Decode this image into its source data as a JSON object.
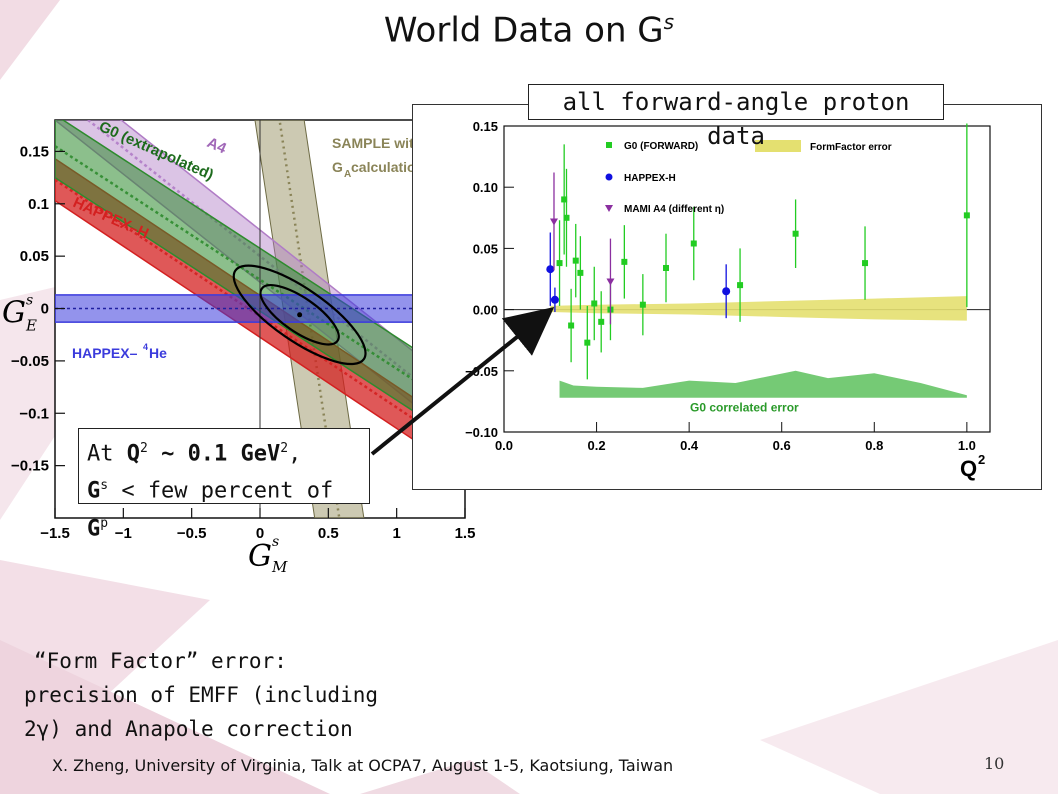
{
  "title": {
    "text": "World Data on G",
    "sup": "s"
  },
  "colors": {
    "g0": "#2e8b2e",
    "happex_h": "#d42020",
    "a4": "#b07cc6",
    "sample": "#9a9466",
    "he4": "#3b3bdc",
    "happex_blue": "#1010e0",
    "mami": "#8b2fa0",
    "g0_marker": "#22cc22",
    "formfactor": "#e4e070",
    "correlated": "#66c466"
  },
  "forward_label": "all forward-angle proton data",
  "callout": {
    "line1_pre": "At ",
    "q": "Q",
    "q_sup": "2",
    "line1_post": " ~ 0.1 GeV",
    "gev_sup": "2",
    "comma": ",",
    "line2_g": "G",
    "line2_sup": "s",
    "line2_mid": " < few percent of ",
    "line2_gp": "G",
    "line2_gp_sup": "p"
  },
  "ff_note": [
    "“Form Factor” error:",
    "precision of EMFF (including",
    "2γ) and Anapole correction"
  ],
  "footer": "X. Zheng, University of Virginia,  Talk at OCPA7, August 1-5, Kaotsiung, Taiwan",
  "page_number": "10",
  "chart_data": [
    {
      "type": "area",
      "xlabel": "G_M^s",
      "ylabel": "G_E^s",
      "xlim": [
        -1.5,
        1.5
      ],
      "ylim": [
        -0.2,
        0.18
      ],
      "xticks": [
        "−1.5",
        "−1",
        "−0.5",
        "0",
        "0.5",
        "1",
        "1.5"
      ],
      "yticks": [
        "−0.15",
        "−0.1",
        "−0.05",
        "0",
        "0.05",
        "0.1",
        "0.15"
      ],
      "ytick_values": [
        -0.15,
        -0.1,
        -0.05,
        0,
        0.05,
        0.1,
        0.15
      ],
      "xtick_values": [
        -1.5,
        -1,
        -0.5,
        0,
        0.5,
        1,
        1.5
      ],
      "bands": [
        {
          "name": "A4",
          "color": "#b07cc6",
          "center": [
            [
              -1.5,
              0.205
            ],
            [
              1.5,
              -0.105
            ]
          ],
          "halfwidth": 0.025
        },
        {
          "name": "G0 (extrapolated)",
          "color": "#2e8b2e",
          "center": [
            [
              -1.5,
              0.155
            ],
            [
              1.5,
              -0.1
            ]
          ],
          "halfwidth": 0.03
        },
        {
          "name": "HAPPEX–H",
          "color": "#d42020",
          "center": [
            [
              -1.5,
              0.123
            ],
            [
              1.5,
              -0.138
            ]
          ],
          "halfwidth": 0.02
        },
        {
          "name": "HAPPEX–⁴He",
          "color": "#3b3bdc",
          "center": [
            [
              -1.5,
              0.0
            ],
            [
              1.5,
              0.0
            ]
          ],
          "halfwidth": 0.013
        },
        {
          "name": "SAMPLE with G_A calculation",
          "color": "#9a9466",
          "center": [
            [
              0.12,
              0.2
            ],
            [
              0.58,
              -0.2
            ]
          ],
          "halfwidth_x": 0.18
        }
      ],
      "labels": [
        "A4",
        "G0 (extrapolated)",
        "HAPPEX–H",
        "SAMPLE with",
        "G",
        "A",
        " calculation",
        "HAPPEX–",
        "4",
        "He"
      ],
      "best_fit": {
        "x": 0.29,
        "y": -0.006
      },
      "contours": [
        {
          "rx": 0.5,
          "ry": 0.022,
          "angle": -0.06
        },
        {
          "rx": 0.3,
          "ry": 0.013,
          "angle": -0.06
        }
      ]
    },
    {
      "type": "scatter",
      "xlabel": "Q²",
      "xlim": [
        0.0,
        1.05
      ],
      "ylim": [
        -0.1,
        0.15
      ],
      "xticks": [
        "0.0",
        "0.2",
        "0.4",
        "0.6",
        "0.8",
        "1.0"
      ],
      "xtick_values": [
        0.0,
        0.2,
        0.4,
        0.6,
        0.8,
        1.0
      ],
      "yticks": [
        "−0.10",
        "−0.05",
        "0.00",
        "0.05",
        "0.10",
        "0.15"
      ],
      "ytick_values": [
        -0.1,
        -0.05,
        0.0,
        0.05,
        0.1,
        0.15
      ],
      "legend": [
        "G0 (FORWARD)",
        "HAPPEX-H",
        "MAMI A4 (different η)",
        "FormFactor error"
      ],
      "band_label": "G0 correlated error",
      "series": [
        {
          "name": "G0 (FORWARD)",
          "marker": "square",
          "color": "#22cc22",
          "points": [
            [
              0.12,
              0.038,
              0.035
            ],
            [
              0.13,
              0.09,
              0.045
            ],
            [
              0.135,
              0.075,
              0.04
            ],
            [
              0.145,
              -0.013,
              0.03
            ],
            [
              0.155,
              0.04,
              0.03
            ],
            [
              0.165,
              0.03,
              0.03
            ],
            [
              0.18,
              -0.027,
              0.03
            ],
            [
              0.195,
              0.005,
              0.03
            ],
            [
              0.21,
              -0.01,
              0.025
            ],
            [
              0.23,
              0.0,
              0.025
            ],
            [
              0.26,
              0.039,
              0.03
            ],
            [
              0.3,
              0.004,
              0.025
            ],
            [
              0.35,
              0.034,
              0.028
            ],
            [
              0.41,
              0.054,
              0.03
            ],
            [
              0.51,
              0.02,
              0.03
            ],
            [
              0.63,
              0.062,
              0.028
            ],
            [
              0.78,
              0.038,
              0.03
            ],
            [
              1.0,
              0.077,
              0.075
            ]
          ]
        },
        {
          "name": "HAPPEX-H",
          "marker": "circle",
          "color": "#1010e0",
          "points": [
            [
              0.1,
              0.033,
              0.03
            ],
            [
              0.11,
              0.008,
              0.01
            ],
            [
              0.48,
              0.015,
              0.022
            ]
          ]
        },
        {
          "name": "MAMI A4 (different η)",
          "marker": "triangle",
          "color": "#8b2fa0",
          "points": [
            [
              0.108,
              0.072,
              0.04
            ],
            [
              0.23,
              0.023,
              0.035
            ]
          ]
        }
      ],
      "formfactor_band": {
        "x": [
          0.1,
          0.2,
          0.4,
          0.6,
          0.8,
          1.0
        ],
        "low": [
          -0.002,
          -0.003,
          -0.004,
          -0.006,
          -0.008,
          -0.009
        ],
        "high": [
          0.003,
          0.004,
          0.005,
          0.007,
          0.009,
          0.011
        ]
      },
      "correlated_band": {
        "x": [
          0.12,
          0.15,
          0.2,
          0.3,
          0.4,
          0.5,
          0.63,
          0.7,
          0.8,
          0.9,
          1.0
        ],
        "top": [
          -0.058,
          -0.062,
          -0.063,
          -0.064,
          -0.058,
          -0.06,
          -0.05,
          -0.056,
          -0.052,
          -0.06,
          -0.07
        ],
        "base": -0.072
      }
    }
  ]
}
